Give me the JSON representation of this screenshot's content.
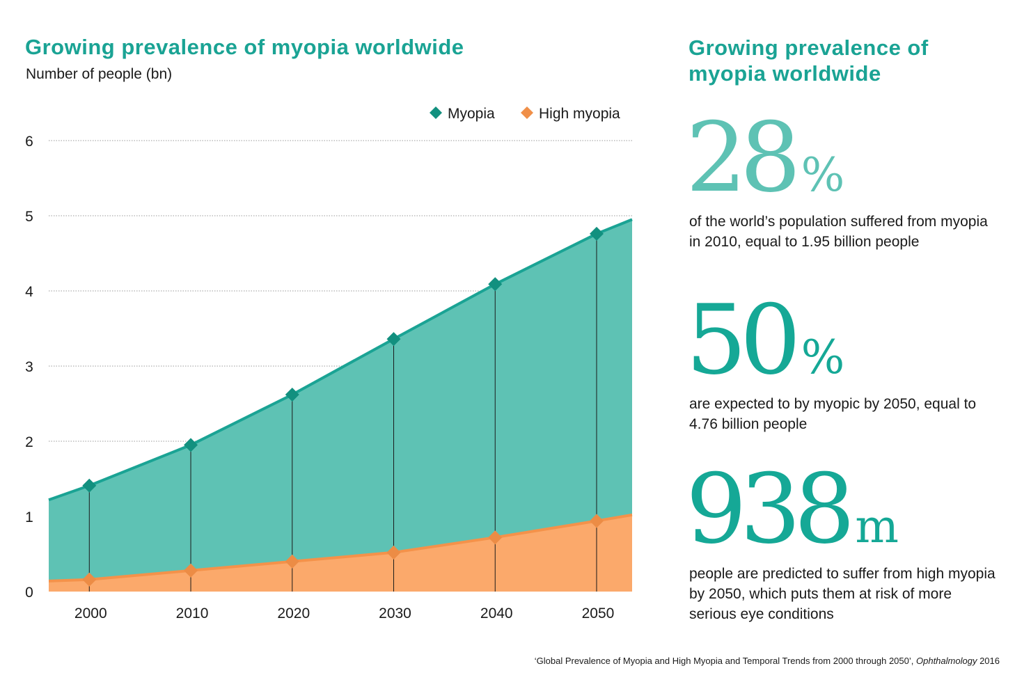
{
  "chart": {
    "title": "Growing prevalence of myopia worldwide",
    "subtitle": "Number of people (bn)"
  },
  "chart_data": {
    "type": "area",
    "title": "Growing prevalence of myopia worldwide",
    "subtitle": "Number of people (bn)",
    "x": [
      2000,
      2010,
      2020,
      2030,
      2040,
      2050
    ],
    "xlim": [
      1996,
      2053.5
    ],
    "ylim": [
      0,
      6
    ],
    "y_ticks": [
      0,
      1,
      2,
      3,
      4,
      5,
      6
    ],
    "grid": true,
    "legend_position": "top-right",
    "series": [
      {
        "name": "Myopia",
        "color": "#1aa394",
        "fill": "#5ec2b4",
        "values": [
          1.41,
          1.95,
          2.62,
          3.36,
          4.09,
          4.76
        ],
        "edge_values": [
          1.22,
          4.95
        ]
      },
      {
        "name": "High myopia",
        "color": "#f4924a",
        "fill": "#fba96b",
        "values": [
          0.16,
          0.28,
          0.4,
          0.52,
          0.72,
          0.94
        ],
        "edge_values": [
          0.14,
          1.02
        ]
      }
    ]
  },
  "side": {
    "title": "Growing prevalence of myopia worldwide",
    "stats": [
      {
        "number": "28",
        "unit": "%",
        "text": "of the world’s population suffered from myopia in 2010, equal to 1.95 billion people"
      },
      {
        "number": "50",
        "unit": "%",
        "text": "are expected to by myopic by 2050, equal to 4.76 billion people"
      },
      {
        "number": "938",
        "unit": "m",
        "text": "people are predicted to suffer from high myopia by 2050, which puts them at risk of more serious eye conditions"
      }
    ]
  },
  "source": {
    "text": "‘Global Prevalence of Myopia and High Myopia and Temporal Trends from 2000 through 2050’,",
    "journal": "Ophthalmology",
    "year": "2016"
  }
}
